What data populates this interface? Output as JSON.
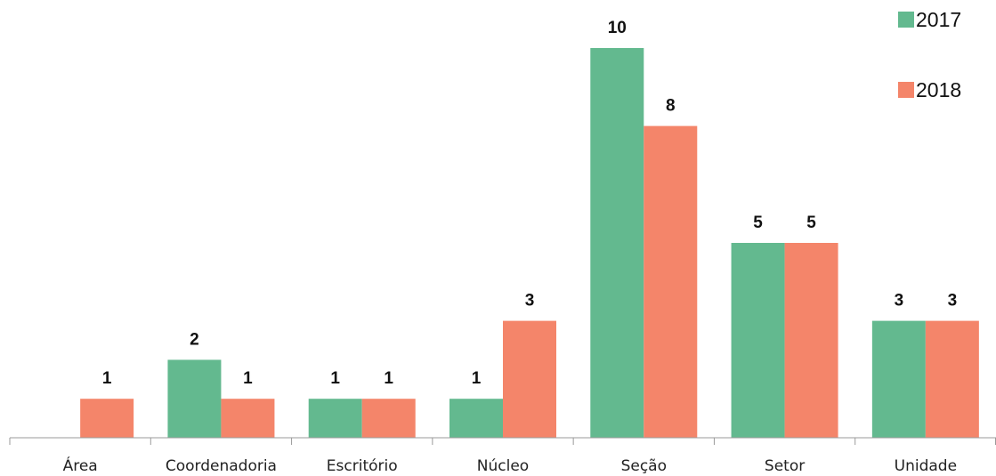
{
  "chart_data": {
    "type": "bar",
    "title": "",
    "xlabel": "",
    "ylabel": "",
    "categories": [
      "Área",
      "Coordenadoria",
      "Escritório",
      "Núcleo",
      "Seção",
      "Setor",
      "Unidade"
    ],
    "series": [
      {
        "name": "2017",
        "color": "#63b98f",
        "values": [
          0,
          2,
          1,
          1,
          10,
          5,
          3
        ],
        "labels": [
          "",
          "2",
          "1",
          "1",
          "10",
          "5",
          "3"
        ]
      },
      {
        "name": "2018",
        "color": "#f4856a",
        "values": [
          1,
          1,
          1,
          3,
          8,
          5,
          3
        ],
        "labels": [
          "1",
          "1",
          "1",
          "3",
          "8",
          "5",
          "3"
        ]
      }
    ],
    "ylim": [
      0,
      10
    ],
    "grid": false,
    "legend_position": "top-right",
    "data_labels": true
  }
}
